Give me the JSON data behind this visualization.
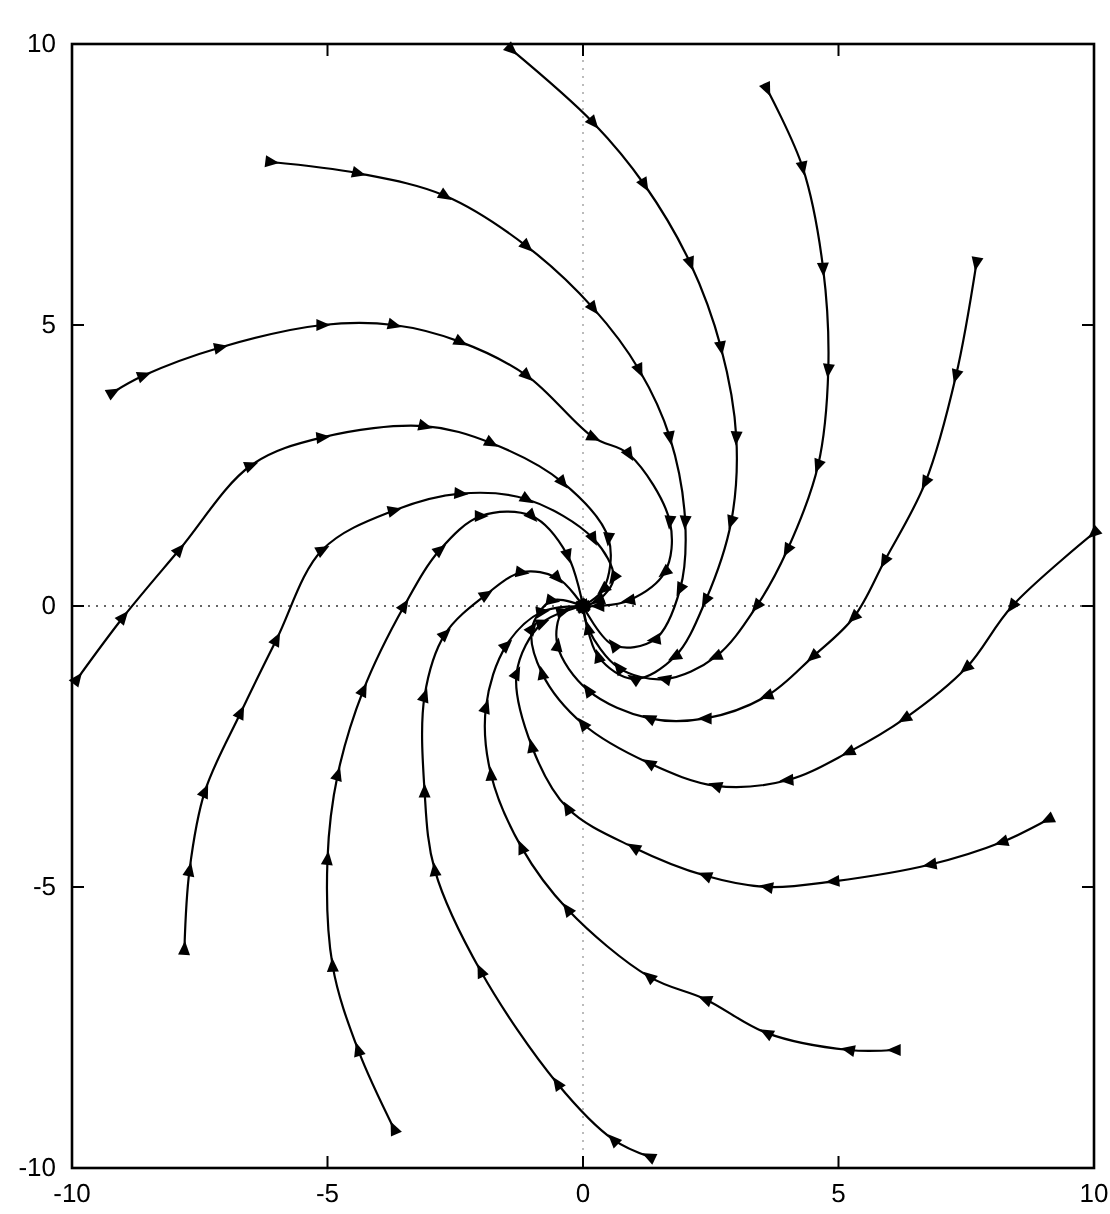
{
  "chart_data": {
    "type": "line",
    "xlim": [
      -10,
      10
    ],
    "ylim": [
      -10,
      10
    ],
    "xticks": [
      -10,
      -5,
      0,
      5,
      10
    ],
    "yticks": [
      -10,
      -5,
      0,
      5,
      10
    ],
    "marker": "triangle",
    "line_style": "solid",
    "ref_lines": [
      {
        "axis": "x",
        "value": 0,
        "line_style": "dotted",
        "color": "#bbbbbb"
      },
      {
        "axis": "y",
        "value": 0,
        "line_style": "dotted",
        "color": "#666666"
      }
    ],
    "series": [
      {
        "color": "#000000",
        "x": [
          -9.2,
          -8.6,
          -7.1,
          -5.1,
          -3.7,
          -2.4,
          -1.1,
          0.2,
          0.9,
          1.7,
          1.6,
          0.9,
          0.3,
          0
        ],
        "values": [
          3.8,
          4.1,
          4.6,
          5.0,
          5.0,
          4.7,
          4.1,
          3.0,
          2.7,
          1.5,
          0.6,
          0.1,
          0,
          0
        ]
      },
      {
        "color": "#000000",
        "x": [
          -6.1,
          -4.4,
          -2.7,
          -1.1,
          0.2,
          1.1,
          1.7,
          2.0,
          1.9,
          1.4,
          0.6,
          0
        ],
        "values": [
          7.9,
          7.7,
          7.3,
          6.4,
          5.3,
          4.2,
          3.0,
          1.5,
          0.3,
          -0.6,
          -0.7,
          0
        ]
      },
      {
        "color": "#000000",
        "x": [
          -1.4,
          0.2,
          1.2,
          2.1,
          2.7,
          3.0,
          2.9,
          2.4,
          1.8,
          1.0,
          0.3,
          0
        ],
        "values": [
          9.9,
          8.6,
          7.5,
          6.1,
          4.6,
          3.0,
          1.5,
          0.1,
          -0.9,
          -1.3,
          -0.9,
          0
        ]
      },
      {
        "color": "#000000",
        "x": [
          3.6,
          4.3,
          4.7,
          4.8,
          4.6,
          4.0,
          3.4,
          2.6,
          1.6,
          0.7,
          0.1,
          0
        ],
        "values": [
          9.2,
          7.8,
          6.0,
          4.2,
          2.5,
          1.0,
          0,
          -0.9,
          -1.3,
          -1.1,
          -0.4,
          0
        ]
      },
      {
        "color": "#000000",
        "x": [
          7.7,
          7.3,
          6.7,
          5.9,
          5.3,
          4.5,
          3.6,
          2.4,
          1.3,
          0.1,
          -0.5,
          -0.4,
          0
        ],
        "values": [
          6.1,
          4.1,
          2.2,
          0.8,
          -0.2,
          -0.9,
          -1.6,
          -2.0,
          -2.0,
          -1.5,
          -0.7,
          -0.1,
          0
        ]
      },
      {
        "color": "#000000",
        "x": [
          10,
          8.4,
          7.5,
          6.3,
          5.2,
          4.0,
          2.6,
          1.3,
          0,
          -0.8,
          -1.0,
          -0.6,
          0
        ],
        "values": [
          1.3,
          0,
          -1.1,
          -2.0,
          -2.6,
          -3.1,
          -3.2,
          -2.8,
          -2.1,
          -1.2,
          -0.4,
          0.1,
          0
        ]
      },
      {
        "color": "#000000",
        "x": [
          9.1,
          8.2,
          6.8,
          4.9,
          3.6,
          2.4,
          1.0,
          -0.3,
          -1.0,
          -1.3,
          -0.8,
          0
        ],
        "values": [
          -3.8,
          -4.2,
          -4.6,
          -4.9,
          -5.0,
          -4.8,
          -4.3,
          -3.6,
          -2.5,
          -1.2,
          -0.3,
          0
        ]
      },
      {
        "color": "#000000",
        "x": [
          6.1,
          5.2,
          3.6,
          2.4,
          1.3,
          -0.3,
          -1.2,
          -1.8,
          -1.9,
          -1.5,
          -0.8,
          0
        ],
        "values": [
          -7.9,
          -7.9,
          -7.6,
          -7.0,
          -6.6,
          -5.4,
          -4.3,
          -3.0,
          -1.8,
          -0.7,
          -0.1,
          0
        ]
      },
      {
        "color": "#000000",
        "x": [
          1.3,
          0.6,
          -0.5,
          -2.0,
          -2.9,
          -3.1,
          -3.1,
          -2.7,
          -1.9,
          -1.2,
          -0.5,
          0
        ],
        "values": [
          -9.8,
          -9.5,
          -8.5,
          -6.5,
          -4.7,
          -3.3,
          -1.6,
          -0.5,
          0.2,
          0.6,
          0.5,
          0
        ]
      },
      {
        "color": "#000000",
        "x": [
          -3.7,
          -4.4,
          -4.9,
          -5.0,
          -4.8,
          -4.3,
          -3.5,
          -2.8,
          -2.0,
          -1.0,
          -0.3,
          0
        ],
        "values": [
          -9.3,
          -7.9,
          -6.4,
          -4.5,
          -3.0,
          -1.5,
          0,
          1.0,
          1.6,
          1.6,
          0.9,
          0
        ]
      },
      {
        "color": "#000000",
        "x": [
          -7.8,
          -7.7,
          -7.4,
          -6.7,
          -6.0,
          -5.1,
          -3.7,
          -2.4,
          -1.1,
          0.2,
          0.6,
          0.3,
          0
        ],
        "values": [
          -6.1,
          -4.7,
          -3.3,
          -1.9,
          -0.6,
          1.0,
          1.7,
          2.0,
          1.9,
          1.2,
          0.5,
          0.1,
          0
        ]
      },
      {
        "color": "#000000",
        "x": [
          -9.9,
          -9.0,
          -7.9,
          -6.5,
          -5.1,
          -3.1,
          -1.8,
          -0.4,
          0.5,
          0.4,
          0
        ],
        "values": [
          -1.3,
          -0.2,
          1.0,
          2.5,
          3.0,
          3.2,
          2.9,
          2.2,
          1.2,
          0.3,
          0
        ]
      }
    ]
  }
}
